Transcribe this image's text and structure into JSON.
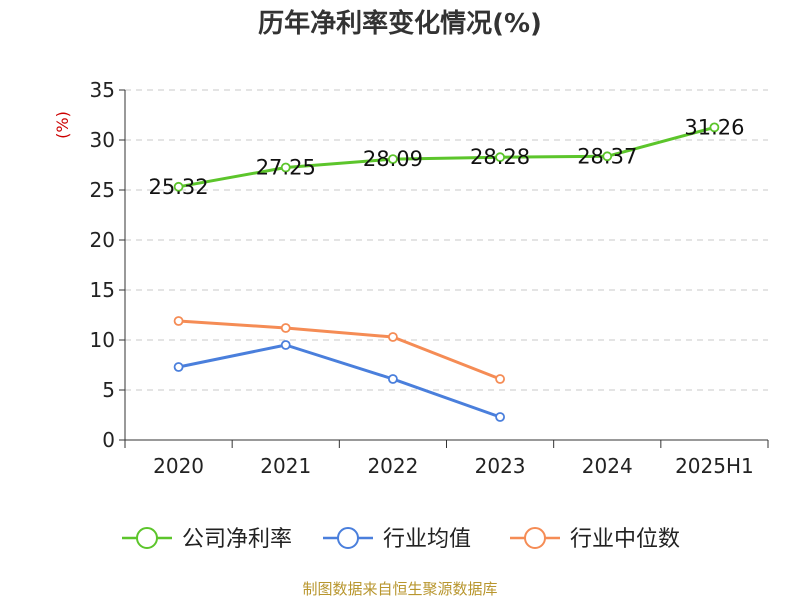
{
  "chart_data": {
    "type": "line",
    "title": "历年净利率变化情况(%)",
    "ylabel": "(%)",
    "xlabel": "",
    "categories": [
      "2020",
      "2021",
      "2022",
      "2023",
      "2024",
      "2025H1"
    ],
    "ylim": [
      0,
      35
    ],
    "yticks": [
      "0",
      "5",
      "10",
      "15",
      "20",
      "25",
      "30",
      "35"
    ],
    "grid": true,
    "legend_position": "bottom",
    "series": [
      {
        "name": "公司净利率",
        "color": "#5cc52b",
        "values": [
          25.32,
          27.25,
          28.09,
          28.28,
          28.37,
          31.26
        ],
        "labels": [
          "25.32",
          "27.25",
          "28.09",
          "28.28",
          "28.37",
          "31.26"
        ]
      },
      {
        "name": "行业均值",
        "color": "#4a7fdc",
        "values": [
          7.3,
          9.5,
          6.1,
          2.3,
          null,
          null
        ]
      },
      {
        "name": "行业中位数",
        "color": "#f58c55",
        "values": [
          11.9,
          11.2,
          10.3,
          6.1,
          null,
          null
        ]
      }
    ]
  },
  "source_text": "制图数据来自恒生聚源数据库"
}
